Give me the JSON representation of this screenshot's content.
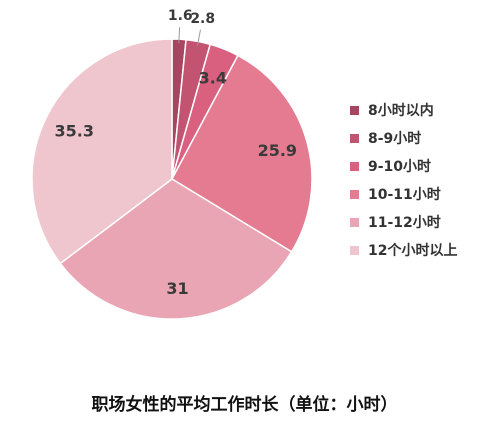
{
  "chart_data": {
    "type": "pie",
    "title": "职场女性的平均工作时长（单位：小时）",
    "categories": [
      "8小时以内",
      "8-9小时",
      "9-10小时",
      "10-11小时",
      "11-12小时",
      "12个小时以上"
    ],
    "values": [
      1.6,
      2.8,
      3.4,
      25.9,
      31,
      35.3
    ],
    "data_labels": [
      "1.6",
      "2.8",
      "3.4",
      "25.9",
      "31",
      "35.3"
    ],
    "colors": [
      "#a84560",
      "#c25472",
      "#d9607f",
      "#e47b91",
      "#e9a5b3",
      "#f0c6ce"
    ],
    "start_angle": "top",
    "direction": "clockwise",
    "legend_position": "right"
  }
}
